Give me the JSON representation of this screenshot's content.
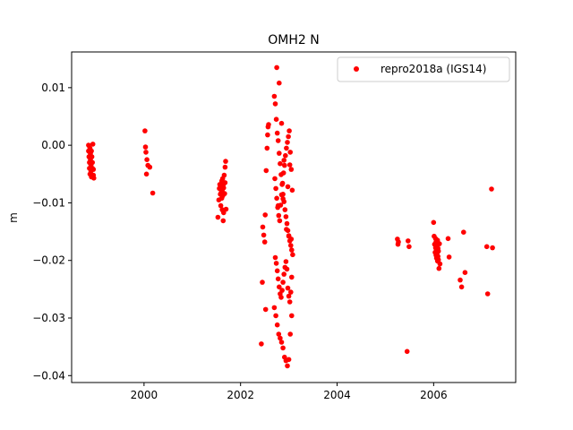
{
  "chart_data": {
    "type": "scatter",
    "title": "OMH2 N",
    "xlabel": "",
    "ylabel": "m",
    "xlim": [
      1998.5,
      2007.7
    ],
    "ylim": [
      -0.0412,
      0.0162
    ],
    "xticks": [
      2000,
      2002,
      2004,
      2006
    ],
    "yticks": [
      0.01,
      0.0,
      -0.01,
      -0.02,
      -0.03,
      -0.04
    ],
    "ytick_labels": [
      "0.01",
      "0.00",
      "−0.01",
      "−0.02",
      "−0.03",
      "−0.04"
    ],
    "grid": false,
    "legend_position": "top-right",
    "series": [
      {
        "name": "repro2018a (IGS14)",
        "color": "#ff0000",
        "marker": "circle",
        "x": [
          1998.85,
          1998.85,
          1998.86,
          1998.87,
          1998.87,
          1998.88,
          1998.88,
          1998.89,
          1998.89,
          1998.9,
          1998.9,
          1998.91,
          1998.91,
          1998.92,
          1998.93,
          1998.93,
          1998.94,
          1998.95,
          1998.95,
          1998.96,
          2000.02,
          2000.03,
          2000.04,
          2000.05,
          2000.06,
          2000.08,
          2000.12,
          2000.18,
          2001.53,
          2001.55,
          2001.56,
          2001.57,
          2001.58,
          2001.59,
          2001.6,
          2001.6,
          2001.61,
          2001.61,
          2001.62,
          2001.62,
          2001.63,
          2001.63,
          2001.64,
          2001.64,
          2001.65,
          2001.65,
          2001.66,
          2001.67,
          2001.68,
          2001.68,
          2001.69,
          2001.7,
          2002.43,
          2002.45,
          2002.46,
          2002.48,
          2002.5,
          2002.51,
          2002.52,
          2002.53,
          2002.55,
          2002.56,
          2002.57,
          2002.58,
          2002.7,
          2002.72,
          2002.74,
          2002.76,
          2002.78,
          2002.8,
          2002.82,
          2002.84,
          2002.86,
          2002.88,
          2002.9,
          2002.92,
          2002.94,
          2002.96,
          2002.98,
          2003.0,
          2003.02,
          2003.04,
          2003.06,
          2003.08,
          2002.71,
          2002.73,
          2002.75,
          2002.77,
          2002.79,
          2002.81,
          2002.83,
          2002.85,
          2002.87,
          2002.89,
          2002.91,
          2002.93,
          2002.95,
          2002.97,
          2002.99,
          2003.01,
          2003.03,
          2003.05,
          2003.07,
          2002.72,
          2002.74,
          2002.76,
          2002.78,
          2002.8,
          2002.82,
          2002.84,
          2002.86,
          2002.88,
          2002.9,
          2002.92,
          2002.94,
          2002.96,
          2002.98,
          2003.0,
          2003.02,
          2003.04,
          2003.06,
          2002.7,
          2002.73,
          2002.76,
          2002.79,
          2002.82,
          2002.85,
          2002.88,
          2002.91,
          2002.94,
          2002.97,
          2003.0,
          2003.03,
          2003.06,
          2002.75,
          2002.8,
          2002.85,
          2002.9,
          2002.95,
          2003.0,
          2003.05,
          2002.78,
          2002.88,
          2002.98,
          2003.02,
          2005.25,
          2005.26,
          2005.27,
          2005.45,
          2005.47,
          2005.49,
          2006.0,
          2006.01,
          2006.02,
          2006.03,
          2006.04,
          2006.04,
          2006.05,
          2006.05,
          2006.06,
          2006.06,
          2006.07,
          2006.07,
          2006.08,
          2006.08,
          2006.09,
          2006.09,
          2006.1,
          2006.1,
          2006.11,
          2006.12,
          2006.13,
          2006.3,
          2006.32,
          2006.55,
          2006.58,
          2006.62,
          2006.65,
          2007.1,
          2007.12,
          2007.2,
          2007.22
        ],
        "y": [
          0.0,
          -0.001,
          -0.002,
          -0.003,
          -0.004,
          -0.005,
          -0.0005,
          -0.0015,
          -0.0025,
          -0.0035,
          -0.0045,
          -0.0055,
          -0.001,
          -0.002,
          -0.003,
          -0.004,
          0.0002,
          -0.0042,
          -0.0052,
          -0.0057,
          0.0025,
          -0.0003,
          -0.0012,
          -0.005,
          -0.0025,
          -0.0035,
          -0.0038,
          -0.0083,
          -0.0125,
          -0.0095,
          -0.0075,
          -0.0068,
          -0.0085,
          -0.0105,
          -0.007,
          -0.0082,
          -0.0062,
          -0.0092,
          -0.0078,
          -0.0112,
          -0.0058,
          -0.0088,
          -0.0131,
          -0.0069,
          -0.0074,
          -0.0117,
          -0.0052,
          -0.0084,
          -0.0038,
          -0.0065,
          -0.0028,
          -0.0111,
          -0.0345,
          -0.0238,
          -0.0142,
          -0.0156,
          -0.0168,
          -0.0121,
          -0.0285,
          -0.0044,
          -0.0005,
          0.0018,
          0.0032,
          0.0036,
          0.0085,
          0.0072,
          0.0045,
          0.0021,
          0.0008,
          -0.0014,
          -0.0032,
          -0.0051,
          -0.0068,
          -0.0085,
          -0.0098,
          -0.0112,
          -0.0124,
          -0.0136,
          -0.0148,
          -0.0158,
          -0.0166,
          -0.0174,
          -0.0182,
          -0.019,
          -0.0058,
          -0.0075,
          -0.0092,
          -0.0108,
          -0.0122,
          -0.0131,
          -0.0104,
          -0.0086,
          -0.0066,
          -0.0048,
          -0.0035,
          -0.0018,
          -0.0005,
          0.0005,
          0.0015,
          0.0025,
          -0.0012,
          -0.0042,
          -0.0078,
          -0.0195,
          -0.0205,
          -0.0218,
          -0.0232,
          -0.0246,
          -0.0258,
          -0.0264,
          -0.0252,
          -0.0238,
          -0.0224,
          -0.0212,
          -0.0202,
          -0.0215,
          -0.0248,
          -0.0262,
          -0.0272,
          -0.0255,
          -0.0229,
          -0.0282,
          -0.0296,
          -0.0312,
          -0.0328,
          -0.0335,
          -0.0342,
          -0.0352,
          -0.0368,
          -0.0374,
          -0.0383,
          -0.0372,
          -0.0328,
          -0.0296,
          0.0135,
          0.0108,
          0.0038,
          -0.0026,
          -0.0146,
          -0.0157,
          -0.0163,
          -0.0105,
          -0.0093,
          -0.0072,
          -0.0034,
          -0.0163,
          -0.0172,
          -0.0168,
          -0.0358,
          -0.0166,
          -0.0176,
          -0.0134,
          -0.0158,
          -0.0172,
          -0.0186,
          -0.0162,
          -0.0178,
          -0.0191,
          -0.0168,
          -0.0182,
          -0.0196,
          -0.0174,
          -0.0188,
          -0.0201,
          -0.0165,
          -0.0179,
          -0.0193,
          -0.0184,
          -0.0199,
          -0.0214,
          -0.0171,
          -0.0206,
          -0.0162,
          -0.0194,
          -0.0234,
          -0.0246,
          -0.0151,
          -0.0221,
          -0.0176,
          -0.0258,
          -0.0076,
          -0.0178
        ]
      }
    ]
  }
}
